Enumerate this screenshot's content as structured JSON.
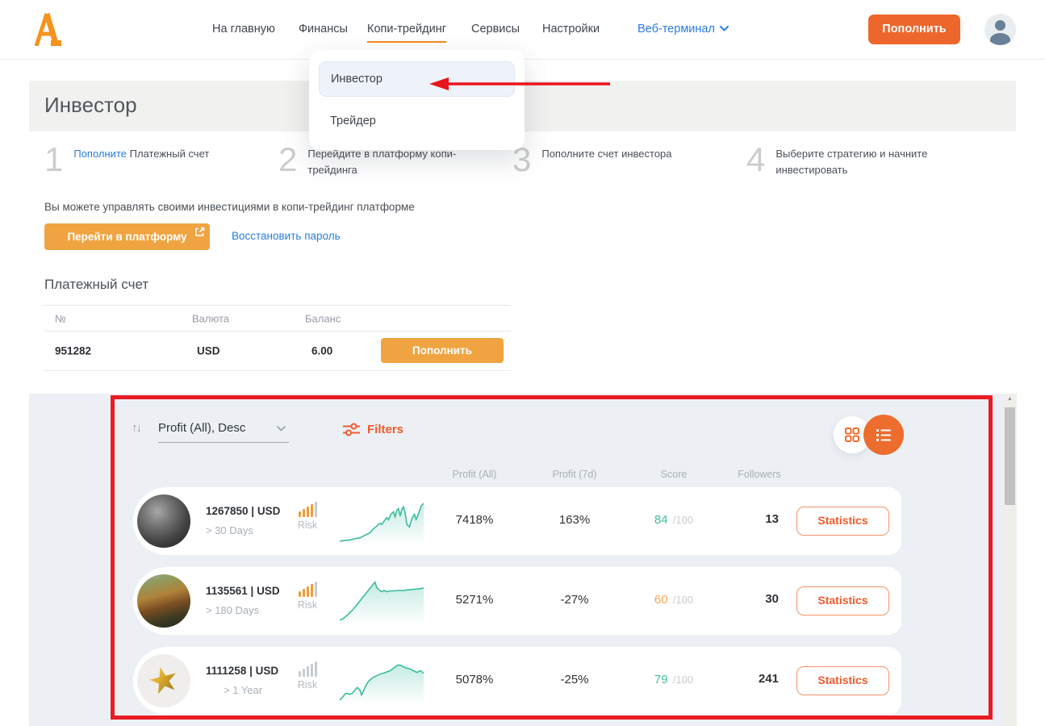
{
  "colors": {
    "accent_orange": "#ed662b",
    "amber_button": "#f0a441",
    "link_blue": "#2a7ce0",
    "teal": "#3abc9d",
    "filters_orange": "#f15b2b",
    "annotation_red": "#ea1c23",
    "risk_active": "#f19b3b",
    "risk_inactive": "#c7ccd2"
  },
  "header": {
    "nav": [
      {
        "label": "На главную"
      },
      {
        "label": "Финансы"
      },
      {
        "label": "Копи-трейдинг",
        "active": true
      },
      {
        "label": "Сервисы"
      },
      {
        "label": "Настройки"
      }
    ],
    "terminal_label": "Веб-терминал",
    "topup_label": "Пополнить"
  },
  "dropdown": {
    "items": [
      {
        "label": "Инвестор",
        "highlighted": true
      },
      {
        "label": "Трейдер"
      }
    ]
  },
  "page": {
    "title": "Инвестор"
  },
  "steps": [
    {
      "num": "1",
      "link": "Пополните",
      "rest": " Платежный счет"
    },
    {
      "num": "2",
      "rest": "Перейдите в платформу копи-трейдинга"
    },
    {
      "num": "3",
      "rest": "Пополните счет инвестора"
    },
    {
      "num": "4",
      "rest": "Выберите стратегию и начните инвестировать"
    }
  ],
  "platform": {
    "note": "Вы можете управлять своими инвестициями в копи-трейдинг платформе",
    "button_label": "Перейти в платформу",
    "restore_link": "Восстановить пароль"
  },
  "account": {
    "heading": "Платежный счет",
    "columns": [
      "№",
      "Валюта",
      "Баланс"
    ],
    "row": {
      "number": "951282",
      "currency": "USD",
      "balance": "6.00",
      "action": "Пополнить"
    }
  },
  "strategies": {
    "sort_label": "Profit (All), Desc",
    "filters_label": "Filters",
    "columns": [
      "Profit (All)",
      "Profit (7d)",
      "Score",
      "Followers"
    ],
    "risk_label": "Risk",
    "score_suffix": "/100",
    "rows": [
      {
        "id": "1267850 | USD",
        "period": "> 30 Days",
        "avatar": "portrait",
        "risk_level": 4,
        "profit_all": "7418%",
        "profit_7d": "163%",
        "score": "84",
        "score_color": "#3cbf9e",
        "followers": "13",
        "action": "Statistics",
        "sparkline": [
          [
            0,
            4
          ],
          [
            6,
            6
          ],
          [
            12,
            7
          ],
          [
            18,
            10
          ],
          [
            24,
            12
          ],
          [
            30,
            18
          ],
          [
            36,
            24
          ],
          [
            40,
            33
          ],
          [
            44,
            40
          ],
          [
            48,
            47
          ],
          [
            50,
            44
          ],
          [
            53,
            52
          ],
          [
            56,
            60
          ],
          [
            58,
            55
          ],
          [
            61,
            68
          ],
          [
            64,
            74
          ],
          [
            66,
            62
          ],
          [
            68,
            78
          ],
          [
            70,
            82
          ],
          [
            72,
            64
          ],
          [
            74,
            80
          ],
          [
            76,
            86
          ],
          [
            78,
            72
          ],
          [
            80,
            44
          ],
          [
            83,
            38
          ],
          [
            86,
            58
          ],
          [
            89,
            68
          ],
          [
            91,
            56
          ],
          [
            93,
            64
          ],
          [
            95,
            76
          ],
          [
            97,
            88
          ],
          [
            100,
            94
          ]
        ]
      },
      {
        "id": "1135561 | USD",
        "period": "> 180 Days",
        "avatar": "landscape",
        "risk_level": 4,
        "profit_all": "5271%",
        "profit_7d": "-27%",
        "score": "60",
        "score_color": "#f2a74c",
        "followers": "30",
        "action": "Statistics",
        "sparkline": [
          [
            0,
            6
          ],
          [
            4,
            10
          ],
          [
            8,
            16
          ],
          [
            12,
            24
          ],
          [
            16,
            32
          ],
          [
            20,
            42
          ],
          [
            24,
            52
          ],
          [
            28,
            62
          ],
          [
            32,
            72
          ],
          [
            36,
            82
          ],
          [
            40,
            92
          ],
          [
            42,
            97
          ],
          [
            44,
            84
          ],
          [
            47,
            78
          ],
          [
            50,
            74
          ],
          [
            53,
            77
          ],
          [
            56,
            74
          ],
          [
            60,
            76
          ],
          [
            65,
            76
          ],
          [
            70,
            77
          ],
          [
            75,
            77
          ],
          [
            80,
            78
          ],
          [
            85,
            79
          ],
          [
            90,
            80
          ],
          [
            95,
            81
          ],
          [
            100,
            83
          ]
        ]
      },
      {
        "id": "1111258 | USD",
        "period": "> 1 Year",
        "avatar": "star",
        "risk_level": 0,
        "profit_all": "5078%",
        "profit_7d": "-25%",
        "score": "79",
        "score_color": "#45c0a5",
        "followers": "241",
        "action": "Statistics",
        "sparkline": [
          [
            0,
            6
          ],
          [
            3,
            12
          ],
          [
            6,
            20
          ],
          [
            9,
            22
          ],
          [
            12,
            20
          ],
          [
            15,
            22
          ],
          [
            18,
            30
          ],
          [
            21,
            36
          ],
          [
            24,
            30
          ],
          [
            26,
            18
          ],
          [
            28,
            26
          ],
          [
            31,
            40
          ],
          [
            34,
            50
          ],
          [
            37,
            56
          ],
          [
            40,
            60
          ],
          [
            44,
            64
          ],
          [
            48,
            68
          ],
          [
            52,
            70
          ],
          [
            56,
            73
          ],
          [
            60,
            76
          ],
          [
            64,
            82
          ],
          [
            68,
            88
          ],
          [
            71,
            90
          ],
          [
            74,
            88
          ],
          [
            77,
            84
          ],
          [
            80,
            82
          ],
          [
            84,
            80
          ],
          [
            88,
            76
          ],
          [
            92,
            72
          ],
          [
            96,
            76
          ],
          [
            100,
            70
          ]
        ]
      }
    ]
  }
}
